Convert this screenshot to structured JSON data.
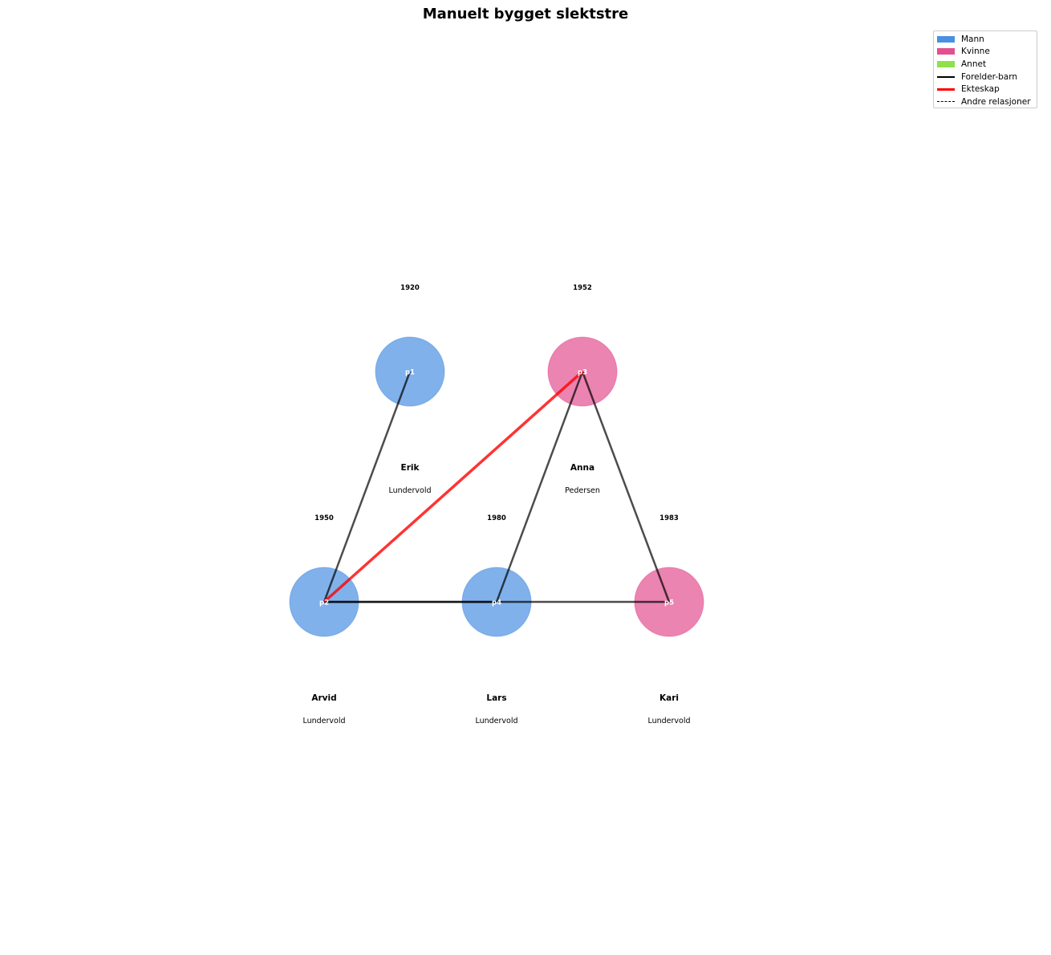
{
  "title": "Manuelt bygget slektstre",
  "colors": {
    "male": "#4a90e2",
    "female": "#e2508f",
    "other": "#8fe04a",
    "parent_child": "#000000",
    "marriage": "#ff0000",
    "other_relation": "#000000"
  },
  "legend": [
    {
      "label": "Mann",
      "kind": "patch",
      "color": "#4a90e2"
    },
    {
      "label": "Kvinne",
      "kind": "patch",
      "color": "#e2508f"
    },
    {
      "label": "Annet",
      "kind": "patch",
      "color": "#8fe04a"
    },
    {
      "label": "Forelder-barn",
      "kind": "line",
      "color": "#000000"
    },
    {
      "label": "Ekteskap",
      "kind": "line-thick",
      "color": "#ff0000"
    },
    {
      "label": "Andre relasjoner",
      "kind": "dashed",
      "color": "#000000"
    }
  ],
  "people": [
    {
      "id": "p1",
      "first_name": "Erik",
      "last_name": "Lundervold",
      "year": "1920",
      "gender": "male"
    },
    {
      "id": "p2",
      "first_name": "Arvid",
      "last_name": "Lundervold",
      "year": "1950",
      "gender": "male"
    },
    {
      "id": "p3",
      "first_name": "Anna",
      "last_name": "Pedersen",
      "year": "1952",
      "gender": "female"
    },
    {
      "id": "p4",
      "first_name": "Lars",
      "last_name": "Lundervold",
      "year": "1980",
      "gender": "male"
    },
    {
      "id": "p5",
      "first_name": "Kari",
      "last_name": "Lundervold",
      "year": "1983",
      "gender": "female"
    }
  ],
  "relations": [
    {
      "from": "p1",
      "to": "p2",
      "type": "parent_child"
    },
    {
      "from": "p2",
      "to": "p4",
      "type": "parent_child"
    },
    {
      "from": "p2",
      "to": "p5",
      "type": "parent_child"
    },
    {
      "from": "p3",
      "to": "p4",
      "type": "parent_child"
    },
    {
      "from": "p3",
      "to": "p5",
      "type": "parent_child"
    },
    {
      "from": "p2",
      "to": "p3",
      "type": "marriage"
    }
  ]
}
